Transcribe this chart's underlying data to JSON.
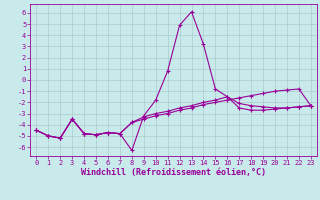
{
  "xlabel": "Windchill (Refroidissement éolien,°C)",
  "background_color": "#c8eaea",
  "line_color": "#990099",
  "grid_color": "#aacccc",
  "x_data": [
    0,
    1,
    2,
    3,
    4,
    5,
    6,
    7,
    8,
    9,
    10,
    11,
    12,
    13,
    14,
    15,
    16,
    17,
    18,
    19,
    20,
    21,
    22,
    23
  ],
  "line1_y": [
    -4.5,
    -5.0,
    -5.2,
    -3.5,
    -4.8,
    -4.9,
    -4.7,
    -4.8,
    -6.3,
    -3.2,
    -1.8,
    0.8,
    4.9,
    6.1,
    3.2,
    -0.8,
    -1.5,
    -2.1,
    -2.3,
    -2.4,
    -2.5,
    -2.5,
    -2.4,
    -2.3
  ],
  "line2_y": [
    -4.5,
    -5.0,
    -5.2,
    -3.5,
    -4.8,
    -4.9,
    -4.7,
    -4.8,
    -3.8,
    -3.5,
    -3.2,
    -3.0,
    -2.7,
    -2.5,
    -2.2,
    -2.0,
    -1.8,
    -1.6,
    -1.4,
    -1.2,
    -1.0,
    -0.9,
    -0.8,
    -2.3
  ],
  "line3_y": [
    -4.5,
    -5.0,
    -5.2,
    -3.5,
    -4.8,
    -4.9,
    -4.7,
    -4.8,
    -3.8,
    -3.3,
    -3.0,
    -2.8,
    -2.5,
    -2.3,
    -2.0,
    -1.8,
    -1.5,
    -2.5,
    -2.7,
    -2.7,
    -2.6,
    -2.5,
    -2.4,
    -2.3
  ],
  "ylim": [
    -6.8,
    6.8
  ],
  "xlim": [
    -0.5,
    23.5
  ],
  "yticks": [
    -6,
    -5,
    -4,
    -3,
    -2,
    -1,
    0,
    1,
    2,
    3,
    4,
    5,
    6
  ],
  "xticks": [
    0,
    1,
    2,
    3,
    4,
    5,
    6,
    7,
    8,
    9,
    10,
    11,
    12,
    13,
    14,
    15,
    16,
    17,
    18,
    19,
    20,
    21,
    22,
    23
  ],
  "tick_fontsize": 5.0,
  "xlabel_fontsize": 6.0,
  "markersize": 2.5,
  "linewidth": 0.8
}
